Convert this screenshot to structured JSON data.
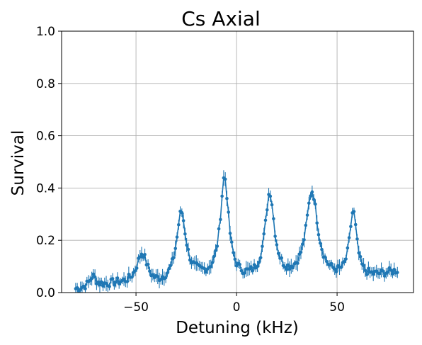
{
  "chart_data": {
    "type": "line",
    "title": "Cs Axial",
    "xlabel": "Detuning (kHz)",
    "ylabel": "Survival",
    "xlim": [
      -87,
      88
    ],
    "ylim": [
      0,
      1.0
    ],
    "grid": true,
    "legend": "none",
    "x_ticks": [
      -50,
      0,
      50
    ],
    "x_tick_labels": [
      "−50",
      "0",
      "50"
    ],
    "y_ticks": [
      0.0,
      0.2,
      0.4,
      0.6,
      0.8,
      1.0
    ],
    "y_tick_labels": [
      "0.0",
      "0.2",
      "0.4",
      "0.6",
      "0.8",
      "1.0"
    ],
    "series_color": "#1f77b4",
    "x_start": -80,
    "x_end": 80,
    "point_count": 201,
    "baseline": [
      {
        "x": -80,
        "y": 0.01
      },
      {
        "x": -60,
        "y": 0.03
      },
      {
        "x": -40,
        "y": 0.02
      },
      {
        "x": -20,
        "y": 0.05
      },
      {
        "x": 0,
        "y": 0.04
      },
      {
        "x": 20,
        "y": 0.04
      },
      {
        "x": 40,
        "y": 0.05
      },
      {
        "x": 60,
        "y": 0.04
      },
      {
        "x": 80,
        "y": 0.08
      }
    ],
    "peaks": [
      {
        "center": -71.5,
        "height": 0.04,
        "width": 2.0
      },
      {
        "center": -47.0,
        "height": 0.12,
        "width": 3.2
      },
      {
        "center": -27.5,
        "height": 0.26,
        "width": 2.8
      },
      {
        "center": -6.0,
        "height": 0.39,
        "width": 2.5
      },
      {
        "center": 16.5,
        "height": 0.33,
        "width": 2.8
      },
      {
        "center": 37.5,
        "height": 0.33,
        "width": 3.5
      },
      {
        "center": 58.0,
        "height": 0.26,
        "width": 2.2
      }
    ],
    "error_bar": 0.022
  }
}
